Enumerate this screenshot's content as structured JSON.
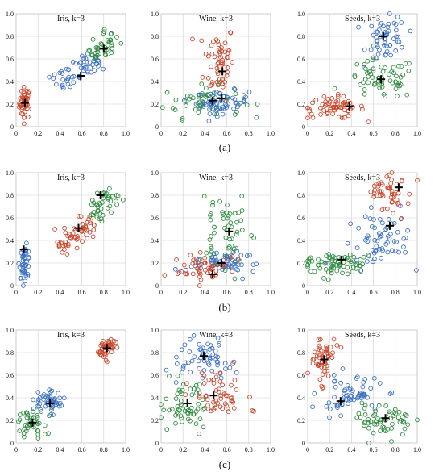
{
  "figure": {
    "row_labels": [
      "(a)",
      "(b)",
      "(c)"
    ]
  },
  "colors": {
    "red": "#c8452a",
    "blue": "#3b6fc4",
    "green": "#2e8b3e",
    "grid": "#cfcfcf",
    "centroid": "#000000"
  },
  "chart_data": [
    {
      "id": "a-iris",
      "type": "scatter",
      "title": "Iris, k=3",
      "xlim": [
        0,
        1
      ],
      "ylim": [
        0,
        1
      ],
      "ticks": [
        0,
        0.2,
        0.4,
        0.6,
        0.8,
        1.0
      ],
      "grid": true,
      "series": [
        {
          "color": "red",
          "shape": "blob",
          "center": [
            0.08,
            0.21
          ],
          "spread": [
            0.025,
            0.07
          ],
          "n": 45
        },
        {
          "color": "blue",
          "shape": "elong",
          "center": [
            0.55,
            0.48
          ],
          "axis": [
            0.38,
            0.26
          ],
          "width": 0.05,
          "n": 60
        },
        {
          "color": "green",
          "shape": "elong",
          "center": [
            0.8,
            0.72
          ],
          "axis": [
            0.18,
            0.22
          ],
          "width": 0.05,
          "n": 40
        }
      ],
      "centroids": [
        [
          0.08,
          0.21
        ],
        [
          0.59,
          0.45
        ],
        [
          0.8,
          0.69
        ]
      ]
    },
    {
      "id": "a-wine",
      "type": "scatter",
      "title": "Wine, k=3",
      "xlim": [
        0,
        1
      ],
      "ylim": [
        0,
        1
      ],
      "ticks": [
        0,
        0.2,
        0.4,
        0.6,
        0.8,
        1.0
      ],
      "grid": true,
      "series": [
        {
          "color": "red",
          "shape": "blob",
          "center": [
            0.53,
            0.58
          ],
          "spread": [
            0.07,
            0.17
          ],
          "n": 60
        },
        {
          "color": "green",
          "shape": "blob",
          "center": [
            0.38,
            0.22
          ],
          "spread": [
            0.18,
            0.07
          ],
          "n": 55
        },
        {
          "color": "blue",
          "shape": "blob",
          "center": [
            0.56,
            0.22
          ],
          "spread": [
            0.12,
            0.05
          ],
          "n": 60
        }
      ],
      "centroids": [
        [
          0.47,
          0.23
        ],
        [
          0.55,
          0.25
        ],
        [
          0.56,
          0.49
        ]
      ]
    },
    {
      "id": "a-seeds",
      "type": "scatter",
      "title": "Seeds, k=3",
      "xlim": [
        0,
        1
      ],
      "ylim": [
        0,
        1
      ],
      "ticks": [
        0,
        0.2,
        0.4,
        0.6,
        0.8,
        1.0
      ],
      "grid": true,
      "series": [
        {
          "color": "red",
          "shape": "blob",
          "center": [
            0.24,
            0.17
          ],
          "spread": [
            0.14,
            0.05
          ],
          "n": 65
        },
        {
          "color": "green",
          "shape": "blob",
          "center": [
            0.67,
            0.42
          ],
          "spread": [
            0.16,
            0.09
          ],
          "n": 65
        },
        {
          "color": "blue",
          "shape": "blob",
          "center": [
            0.72,
            0.78
          ],
          "spread": [
            0.09,
            0.1
          ],
          "n": 55
        }
      ],
      "centroids": [
        [
          0.38,
          0.18
        ],
        [
          0.67,
          0.42
        ],
        [
          0.69,
          0.8
        ]
      ]
    },
    {
      "id": "b-iris",
      "type": "scatter",
      "title": "Iris, k=3",
      "xlim": [
        0,
        1
      ],
      "ylim": [
        0,
        1
      ],
      "ticks": [
        0,
        0.2,
        0.4,
        0.6,
        0.8,
        1.0
      ],
      "grid": true,
      "series": [
        {
          "color": "blue",
          "shape": "blob",
          "center": [
            0.08,
            0.21
          ],
          "spread": [
            0.025,
            0.07
          ],
          "n": 45
        },
        {
          "color": "red",
          "shape": "elong",
          "center": [
            0.55,
            0.45
          ],
          "axis": [
            0.32,
            0.24
          ],
          "width": 0.05,
          "n": 60
        },
        {
          "color": "green",
          "shape": "elong",
          "center": [
            0.8,
            0.72
          ],
          "axis": [
            0.2,
            0.22
          ],
          "width": 0.05,
          "n": 45
        }
      ],
      "centroids": [
        [
          0.07,
          0.32
        ],
        [
          0.57,
          0.51
        ],
        [
          0.77,
          0.8
        ]
      ]
    },
    {
      "id": "b-wine",
      "type": "scatter",
      "title": "Wine, k=3",
      "xlim": [
        0,
        1
      ],
      "ylim": [
        0,
        1
      ],
      "ticks": [
        0,
        0.2,
        0.4,
        0.6,
        0.8,
        1.0
      ],
      "grid": true,
      "series": [
        {
          "color": "green",
          "shape": "blob",
          "center": [
            0.57,
            0.48
          ],
          "spread": [
            0.1,
            0.2
          ],
          "n": 65
        },
        {
          "color": "blue",
          "shape": "blob",
          "center": [
            0.57,
            0.2
          ],
          "spread": [
            0.13,
            0.05
          ],
          "n": 55
        },
        {
          "color": "red",
          "shape": "blob",
          "center": [
            0.4,
            0.15
          ],
          "spread": [
            0.13,
            0.07
          ],
          "n": 50
        }
      ],
      "centroids": [
        [
          0.47,
          0.1
        ],
        [
          0.55,
          0.2
        ],
        [
          0.62,
          0.48
        ]
      ]
    },
    {
      "id": "b-seeds",
      "type": "scatter",
      "title": "Seeds, k=3",
      "xlim": [
        0,
        1
      ],
      "ylim": [
        0,
        1
      ],
      "ticks": [
        0,
        0.2,
        0.4,
        0.6,
        0.8,
        1.0
      ],
      "grid": true,
      "series": [
        {
          "color": "green",
          "shape": "blob",
          "center": [
            0.24,
            0.2
          ],
          "spread": [
            0.15,
            0.06
          ],
          "n": 70
        },
        {
          "color": "blue",
          "shape": "blob",
          "center": [
            0.65,
            0.42
          ],
          "spread": [
            0.15,
            0.12
          ],
          "n": 65
        },
        {
          "color": "red",
          "shape": "blob",
          "center": [
            0.74,
            0.82
          ],
          "spread": [
            0.1,
            0.09
          ],
          "n": 50
        }
      ],
      "centroids": [
        [
          0.31,
          0.23
        ],
        [
          0.75,
          0.53
        ],
        [
          0.83,
          0.87
        ]
      ]
    },
    {
      "id": "c-iris",
      "type": "scatter",
      "title": "Iris, k=3",
      "xlim": [
        0,
        1
      ],
      "ylim": [
        0,
        1
      ],
      "ticks": [
        0,
        0.2,
        0.4,
        0.6,
        0.8,
        1.0
      ],
      "grid": true,
      "series": [
        {
          "color": "green",
          "shape": "blob",
          "center": [
            0.15,
            0.18
          ],
          "spread": [
            0.07,
            0.06
          ],
          "n": 45
        },
        {
          "color": "blue",
          "shape": "blob",
          "center": [
            0.3,
            0.35
          ],
          "spread": [
            0.07,
            0.06
          ],
          "n": 50
        },
        {
          "color": "red",
          "shape": "elong",
          "center": [
            0.83,
            0.85
          ],
          "axis": [
            0.14,
            0.12
          ],
          "width": 0.03,
          "n": 45
        }
      ],
      "centroids": [
        [
          0.15,
          0.18
        ],
        [
          0.31,
          0.35
        ],
        [
          0.83,
          0.84
        ]
      ]
    },
    {
      "id": "c-wine",
      "type": "scatter",
      "title": "Wine, k=3",
      "xlim": [
        0,
        1
      ],
      "ylim": [
        0,
        1
      ],
      "ticks": [
        0,
        0.2,
        0.4,
        0.6,
        0.8,
        1.0
      ],
      "grid": true,
      "series": [
        {
          "color": "blue",
          "shape": "blob",
          "center": [
            0.4,
            0.75
          ],
          "spread": [
            0.12,
            0.1
          ],
          "n": 60
        },
        {
          "color": "green",
          "shape": "blob",
          "center": [
            0.22,
            0.32
          ],
          "spread": [
            0.12,
            0.1
          ],
          "n": 60
        },
        {
          "color": "red",
          "shape": "blob",
          "center": [
            0.52,
            0.42
          ],
          "spread": [
            0.12,
            0.12
          ],
          "n": 55
        }
      ],
      "centroids": [
        [
          0.39,
          0.77
        ],
        [
          0.24,
          0.35
        ],
        [
          0.48,
          0.42
        ]
      ]
    },
    {
      "id": "c-seeds",
      "type": "scatter",
      "title": "Seeds, k=3",
      "xlim": [
        0,
        1
      ],
      "ylim": [
        0,
        1
      ],
      "ticks": [
        0,
        0.2,
        0.4,
        0.6,
        0.8,
        1.0
      ],
      "grid": true,
      "series": [
        {
          "color": "red",
          "shape": "blob",
          "center": [
            0.13,
            0.75
          ],
          "spread": [
            0.06,
            0.1
          ],
          "n": 55
        },
        {
          "color": "blue",
          "shape": "blob",
          "center": [
            0.38,
            0.42
          ],
          "spread": [
            0.15,
            0.08
          ],
          "n": 65
        },
        {
          "color": "green",
          "shape": "blob",
          "center": [
            0.7,
            0.2
          ],
          "spread": [
            0.12,
            0.07
          ],
          "n": 60
        }
      ],
      "centroids": [
        [
          0.15,
          0.74
        ],
        [
          0.3,
          0.37
        ],
        [
          0.71,
          0.22
        ]
      ]
    }
  ]
}
